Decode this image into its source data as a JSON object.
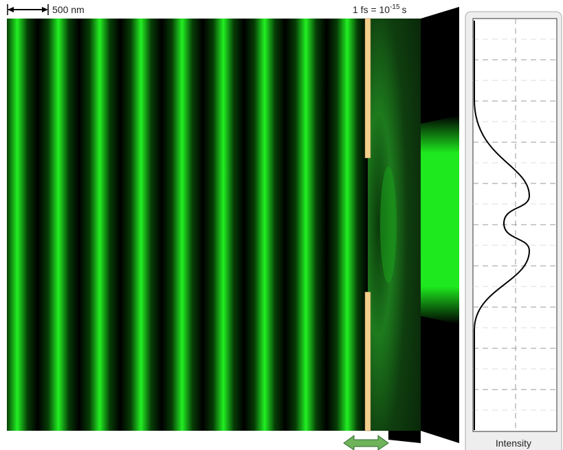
{
  "scale_bar": {
    "label": "500 nm"
  },
  "time_scale": {
    "text": "1 fs = 10",
    "exponent": "-15",
    "unit": "s"
  },
  "intensity_panel": {
    "label": "Intensity"
  }
}
